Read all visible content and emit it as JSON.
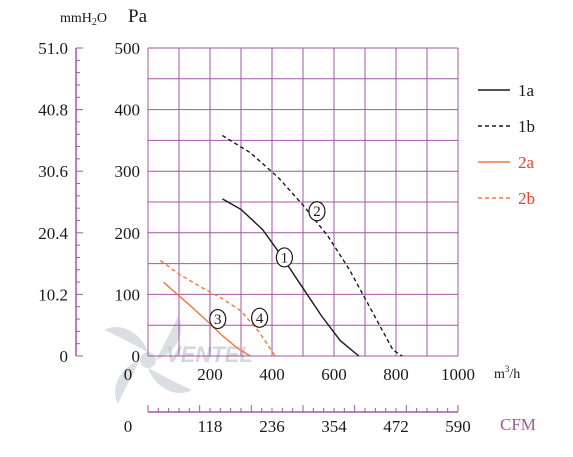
{
  "colors": {
    "grid": "#a455a8",
    "axis": "#a455a8",
    "black_curve": "#1a1a1a",
    "orange_curve": "#f07a3c",
    "red_text": "#e8442e",
    "cfm_text": "#a455a8"
  },
  "units": {
    "mmh2o": "mmH2O",
    "pa": "Pa",
    "flow": "m3/h",
    "cfm": "CFM"
  },
  "chart_data": {
    "type": "line",
    "title": "",
    "x_axis": {
      "unit": "m3/h",
      "range": [
        0,
        1000
      ],
      "ticks": [
        0,
        200,
        400,
        600,
        800,
        1000
      ],
      "tick_labels": [
        "0",
        "200",
        "400",
        "600",
        "800",
        "1000"
      ]
    },
    "x_axis_secondary": {
      "unit": "CFM",
      "ticks": [
        0,
        118,
        236,
        354,
        472,
        590
      ],
      "tick_labels": [
        "0",
        "118",
        "236",
        "354",
        "472",
        "590"
      ]
    },
    "y_axis": {
      "unit": "Pa",
      "range": [
        0,
        500
      ],
      "ticks": [
        0,
        100,
        200,
        300,
        400,
        500
      ],
      "tick_labels": [
        "0",
        "100",
        "200",
        "300",
        "400",
        "500"
      ]
    },
    "y_axis_secondary": {
      "unit": "mmH2O",
      "tick_labels": [
        "0",
        "10.2",
        "20.4",
        "30.6",
        "40.8",
        "51.0"
      ]
    },
    "grid": true,
    "legend_position": "right",
    "series": [
      {
        "name": "1a",
        "label": "1",
        "color": "#1a1a1a",
        "dash": "solid",
        "x": [
          240,
          300,
          370,
          430,
          500,
          560,
          620,
          680
        ],
        "y": [
          255,
          238,
          205,
          163,
          110,
          65,
          25,
          0
        ]
      },
      {
        "name": "1b",
        "label": "2",
        "color": "#1a1a1a",
        "dash": "dashed",
        "x": [
          240,
          330,
          420,
          500,
          580,
          650,
          720,
          790,
          820
        ],
        "y": [
          358,
          330,
          290,
          245,
          195,
          140,
          75,
          10,
          0
        ]
      },
      {
        "name": "2a",
        "label": "3",
        "color": "#f07a3c",
        "dash": "solid",
        "x": [
          50,
          90,
          140,
          190,
          240,
          290,
          330
        ],
        "y": [
          120,
          102,
          80,
          57,
          33,
          12,
          0
        ]
      },
      {
        "name": "2b",
        "label": "4",
        "color": "#f07a3c",
        "dash": "dashed",
        "x": [
          40,
          100,
          170,
          240,
          300,
          360,
          410
        ],
        "y": [
          155,
          133,
          112,
          93,
          73,
          38,
          0
        ]
      }
    ],
    "markers": [
      {
        "text": "1",
        "x": 440,
        "y": 160
      },
      {
        "text": "2",
        "x": 545,
        "y": 235
      },
      {
        "text": "3",
        "x": 225,
        "y": 60
      },
      {
        "text": "4",
        "x": 360,
        "y": 62
      }
    ]
  },
  "watermark": "VENTEL"
}
